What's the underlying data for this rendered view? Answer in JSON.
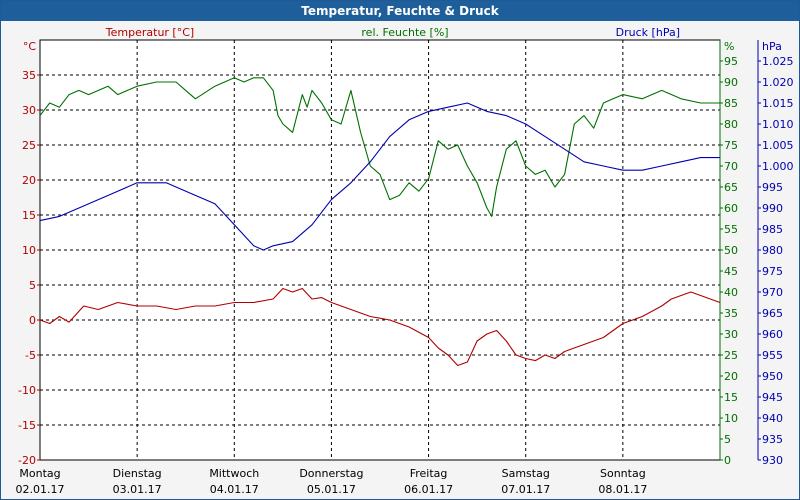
{
  "window": {
    "title": "Temperatur, Feuchte & Druck"
  },
  "colors": {
    "temperature": "#b00000",
    "humidity": "#007000",
    "pressure": "#0000b0",
    "grid": "#000000",
    "background": "#ffffff",
    "titlebar": "#1e5f9b"
  },
  "chart_data": {
    "type": "line",
    "title": "Temperatur, Feuchte & Druck",
    "grid": true,
    "x": {
      "range": [
        0,
        7
      ],
      "unit": "days",
      "ticks": [
        {
          "day": "Montag",
          "date": "02.01.17"
        },
        {
          "day": "Dienstag",
          "date": "03.01.17"
        },
        {
          "day": "Mittwoch",
          "date": "04.01.17"
        },
        {
          "day": "Donnerstag",
          "date": "05.01.17"
        },
        {
          "day": "Freitag",
          "date": "06.01.17"
        },
        {
          "day": "Samstag",
          "date": "07.01.17"
        },
        {
          "day": "Sonntag",
          "date": "08.01.17"
        }
      ]
    },
    "axes": {
      "temperature": {
        "label": "Temperatur [°C]",
        "unit": "°C",
        "range": [
          -20,
          40
        ],
        "ticks": [
          "-20",
          "-15",
          "-10",
          "-5",
          "0",
          "5",
          "10",
          "15",
          "20",
          "25",
          "30",
          "35"
        ]
      },
      "humidity": {
        "label": "rel. Feuchte [%]",
        "unit": "%",
        "range": [
          0,
          100
        ],
        "ticks": [
          "0",
          "5",
          "10",
          "15",
          "20",
          "25",
          "30",
          "35",
          "40",
          "45",
          "50",
          "55",
          "60",
          "65",
          "70",
          "75",
          "80",
          "85",
          "90",
          "95"
        ]
      },
      "pressure": {
        "label": "Druck [hPa]",
        "unit": "hPa",
        "range": [
          930,
          1030
        ],
        "ticks": [
          "930",
          "935",
          "940",
          "945",
          "950",
          "955",
          "960",
          "965",
          "970",
          "975",
          "980",
          "985",
          "990",
          "995",
          "1.000",
          "1.005",
          "1.010",
          "1.015",
          "1.020",
          "1.025"
        ]
      }
    },
    "series": [
      {
        "name": "Temperatur [°C]",
        "axis": "temperature",
        "color": "#b00000",
        "x": [
          0,
          0.1,
          0.2,
          0.3,
          0.45,
          0.6,
          0.8,
          1.0,
          1.2,
          1.4,
          1.6,
          1.8,
          2.0,
          2.2,
          2.4,
          2.5,
          2.6,
          2.7,
          2.8,
          2.9,
          3.0,
          3.2,
          3.4,
          3.6,
          3.8,
          4.0,
          4.1,
          4.2,
          4.3,
          4.4,
          4.5,
          4.6,
          4.7,
          4.8,
          4.9,
          5.0,
          5.1,
          5.2,
          5.3,
          5.4,
          5.6,
          5.8,
          6.0,
          6.2,
          6.4,
          6.5,
          6.6,
          6.7,
          6.8,
          6.9,
          7.0
        ],
        "values": [
          0,
          -0.5,
          0.5,
          -0.3,
          2,
          1.5,
          2.5,
          2,
          2,
          1.5,
          2,
          2,
          2.5,
          2.5,
          3,
          4.5,
          4,
          4.5,
          3,
          3.2,
          2.5,
          1.5,
          0.5,
          0,
          -1,
          -2.5,
          -4,
          -5,
          -6.5,
          -6,
          -3,
          -2,
          -1.5,
          -3,
          -5,
          -5.5,
          -5.8,
          -5,
          -5.5,
          -4.5,
          -3.5,
          -2.5,
          -0.5,
          0.5,
          2,
          3,
          3.5,
          4,
          3.5,
          3,
          2.5
        ]
      },
      {
        "name": "rel. Feuchte [%]",
        "axis": "humidity",
        "color": "#007000",
        "x": [
          0,
          0.1,
          0.2,
          0.3,
          0.4,
          0.5,
          0.7,
          0.8,
          1.0,
          1.2,
          1.4,
          1.5,
          1.6,
          1.8,
          2.0,
          2.1,
          2.2,
          2.3,
          2.4,
          2.45,
          2.5,
          2.6,
          2.7,
          2.75,
          2.8,
          2.9,
          3.0,
          3.1,
          3.2,
          3.3,
          3.4,
          3.5,
          3.6,
          3.7,
          3.8,
          3.9,
          4.0,
          4.1,
          4.2,
          4.3,
          4.4,
          4.5,
          4.6,
          4.65,
          4.7,
          4.8,
          4.9,
          5.0,
          5.1,
          5.2,
          5.3,
          5.4,
          5.5,
          5.6,
          5.7,
          5.8,
          5.9,
          6.0,
          6.2,
          6.4,
          6.6,
          6.8,
          7.0
        ],
        "values": [
          82,
          85,
          84,
          87,
          88,
          87,
          89,
          87,
          89,
          90,
          90,
          88,
          86,
          89,
          91,
          90,
          91,
          91,
          88,
          82,
          80,
          78,
          87,
          84,
          88,
          85,
          81,
          80,
          88,
          78,
          70,
          68,
          62,
          63,
          66,
          64,
          67,
          76,
          74,
          75,
          70,
          66,
          60,
          58,
          65,
          74,
          76,
          70,
          68,
          69,
          65,
          68,
          80,
          82,
          79,
          85,
          86,
          87,
          86,
          88,
          86,
          85,
          85
        ]
      },
      {
        "name": "Druck [hPa]",
        "axis": "pressure",
        "color": "#0000b0",
        "x": [
          0,
          0.2,
          0.4,
          0.6,
          0.8,
          1.0,
          1.2,
          1.3,
          1.4,
          1.6,
          1.8,
          2.0,
          2.2,
          2.3,
          2.4,
          2.6,
          2.8,
          3.0,
          3.2,
          3.4,
          3.6,
          3.8,
          4.0,
          4.2,
          4.4,
          4.6,
          4.8,
          5.0,
          5.2,
          5.4,
          5.6,
          5.8,
          6.0,
          6.2,
          6.4,
          6.6,
          6.8,
          7.0
        ],
        "values": [
          987,
          988,
          990,
          992,
          994,
          996,
          996,
          996,
          995,
          993,
          991,
          986,
          981,
          980,
          981,
          982,
          986,
          992,
          996,
          1001,
          1007,
          1011,
          1013,
          1014,
          1015,
          1013,
          1012,
          1010,
          1007,
          1004,
          1001,
          1000,
          999,
          999,
          1000,
          1001,
          1002,
          1002
        ]
      }
    ]
  }
}
